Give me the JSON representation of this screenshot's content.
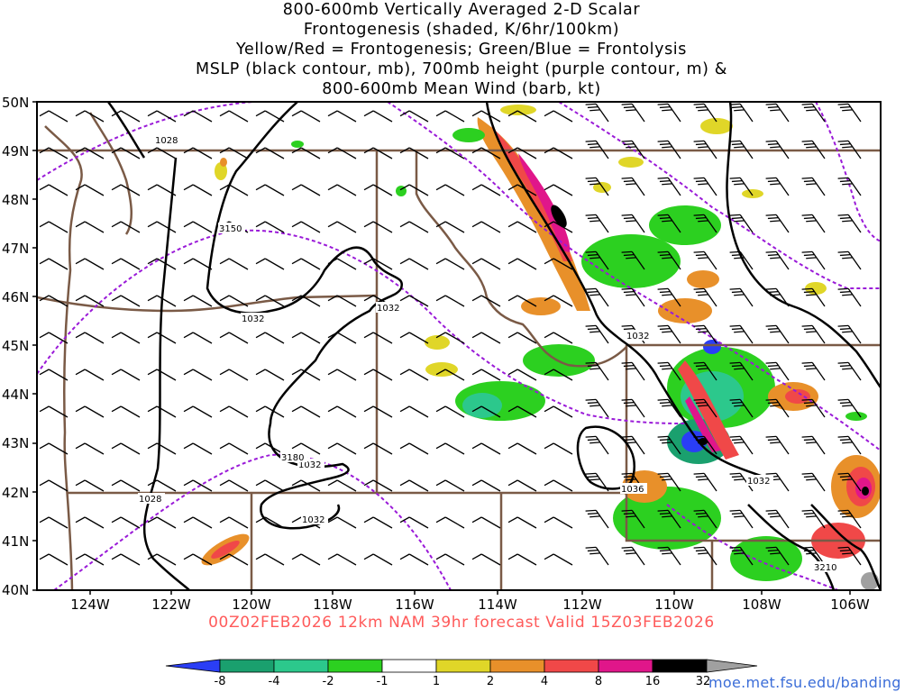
{
  "title": {
    "line1": "800-600mb Vertically Averaged 2-D Scalar",
    "line2": "Frontogenesis (shaded, K/6hr/100km)",
    "line3": "Yellow/Red = Frontogenesis;  Green/Blue = Frontolysis",
    "line4": "MSLP (black contour, mb), 700mb height (purple contour, m) &",
    "line5": "800-600mb Mean Wind (barb, kt)"
  },
  "valid_text": "00Z02FEB2026 12km NAM 39hr forecast Valid 15Z03FEB2026",
  "credit": "moe.met.fsu.edu/banding",
  "axes": {
    "lat_labels": [
      "50N",
      "49N",
      "48N",
      "47N",
      "46N",
      "45N",
      "44N",
      "43N",
      "42N",
      "41N",
      "40N"
    ],
    "lon_labels": [
      "124W",
      "122W",
      "120W",
      "118W",
      "116W",
      "114W",
      "112W",
      "110W",
      "108W",
      "106W"
    ]
  },
  "contour_labels": {
    "mslp": [
      "1028",
      "1032",
      "1032",
      "1032",
      "1032",
      "1032",
      "1036",
      "1032",
      "1028"
    ],
    "height": [
      "3150",
      "3180",
      "3210"
    ]
  },
  "colorbar": {
    "labels": [
      "-8",
      "-4",
      "-2",
      "-1",
      "1",
      "2",
      "4",
      "8",
      "16",
      "32"
    ],
    "colors": [
      "#2a3ef5",
      "#1aa06e",
      "#2cc88c",
      "#2cd020",
      "#ffffff",
      "#e0d628",
      "#e8902a",
      "#f04848",
      "#e0168a",
      "#000000",
      "#a0a0a0"
    ]
  },
  "colors": {
    "state_border": "#7a5a46",
    "mslp_contour": "#000000",
    "height_contour": "#9a1ad8",
    "valid_text": "#ff5a5a",
    "credit_text": "#3b6dd8"
  }
}
